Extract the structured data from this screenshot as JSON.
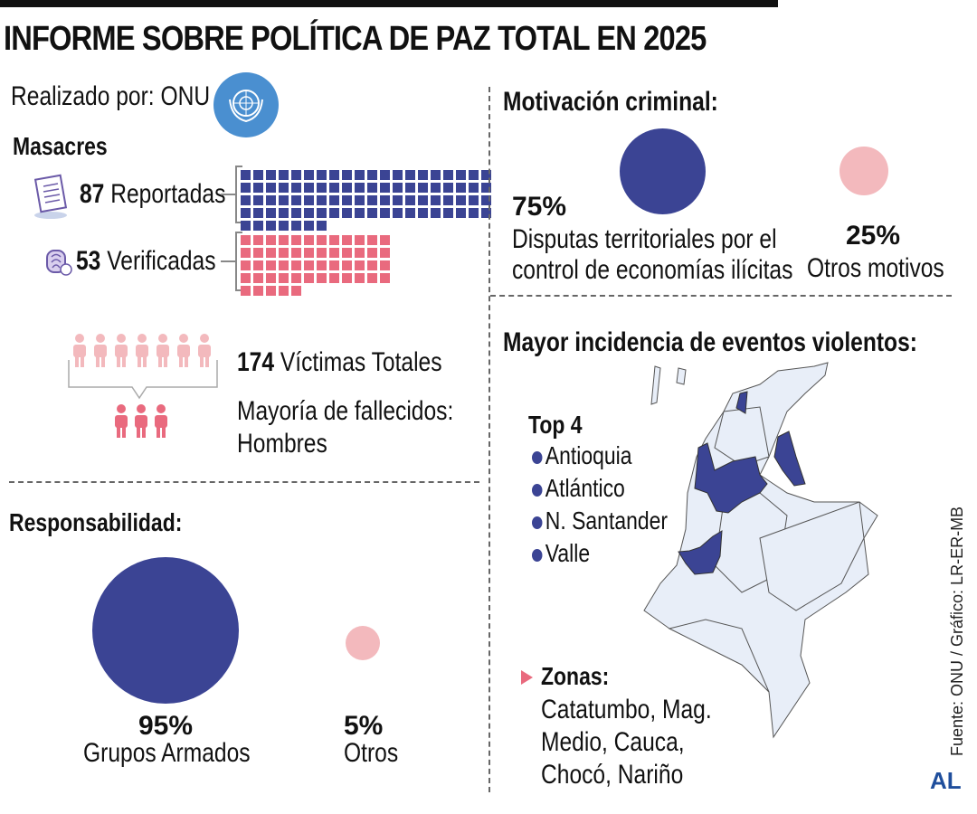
{
  "title": "INFORME SOBRE POLÍTICA DE PAZ TOTAL EN 2025",
  "author": "Realizado por: ONU",
  "colors": {
    "navy": "#3b4494",
    "pink": "#e96a7e",
    "light_pink": "#f3b9bd",
    "map_fill": "#e8eef8",
    "onu_blue": "#4a8fd0"
  },
  "masacres": {
    "heading": "Masacres",
    "reported_num": "87",
    "reported_label": "Reportadas",
    "verified_num": "53",
    "verified_label": "Verificadas"
  },
  "victims": {
    "num": "174",
    "label": "Víctimas Totales",
    "majority": "Mayoría de fallecidos:",
    "majority_value": "Hombres"
  },
  "responsabilidad": {
    "heading": "Responsabilidad:",
    "a_pct": "95%",
    "a_label": "Grupos Armados",
    "b_pct": "5%",
    "b_label": "Otros"
  },
  "motivacion": {
    "heading": "Motivación criminal:",
    "a_pct": "75%",
    "a_label_1": "Disputas territoriales por el",
    "a_label_2": "control de economías ilícitas",
    "b_pct": "25%",
    "b_label": "Otros motivos"
  },
  "incidencia": {
    "heading": "Mayor incidencia de eventos violentos:",
    "top_label": "Top 4",
    "top": [
      "Antioquia",
      "Atlántico",
      "N. Santander",
      "Valle"
    ],
    "zonas_label": "Zonas:",
    "zonas_1": "Catatumbo, Mag.",
    "zonas_2": "Medio, Cauca,",
    "zonas_3": "Chocó, Nariño"
  },
  "source": "Fuente: ONU / Gráfico: LR-ER-MB",
  "logo": "AL",
  "chart_data": [
    {
      "type": "waffle",
      "title": "Masacres",
      "series": [
        {
          "name": "Reportadas",
          "value": 87
        },
        {
          "name": "Verificadas",
          "value": 53
        }
      ]
    },
    {
      "type": "bubble",
      "title": "Responsabilidad:",
      "categories": [
        "Grupos Armados",
        "Otros"
      ],
      "values": [
        95,
        5
      ]
    },
    {
      "type": "bubble",
      "title": "Motivación criminal:",
      "categories": [
        "Disputas territoriales por el control de economías ilícitas",
        "Otros motivos"
      ],
      "values": [
        75,
        25
      ]
    }
  ]
}
